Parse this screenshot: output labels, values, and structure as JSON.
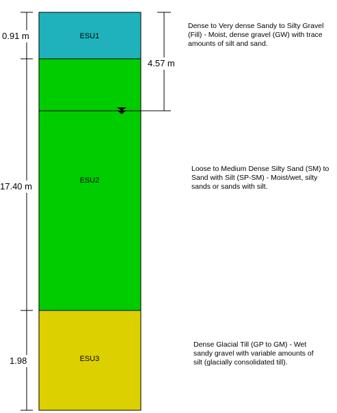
{
  "layers": [
    {
      "id": "ESU1",
      "color": "#1fb2bd",
      "thickness_m": 0.91,
      "thickness_label": "0.91 m",
      "description": "Dense to Very dense Sandy to Silty Gravel (Fill) - Moist, dense gravel (GW) with trace amounts of silt and sand."
    },
    {
      "id": "ESU2",
      "color": "#00cc00",
      "thickness_m": 17.4,
      "thickness_label": "17.40 m",
      "description": "Loose to Medium Dense Silty Sand (SM) to Sand with Silt (SP-SM) - Moist/wet, silty sands or sands with silt."
    },
    {
      "id": "ESU3",
      "color": "#ddd000",
      "thickness_m": 1.98,
      "thickness_label": "1.98",
      "description": "Dense Glacial Till (GP to GM) - Wet sandy gravel with variable amounts of silt (glacially consolidated till)."
    }
  ],
  "water_table": {
    "depth_label": "4.57 m",
    "depth_m": 4.57
  }
}
